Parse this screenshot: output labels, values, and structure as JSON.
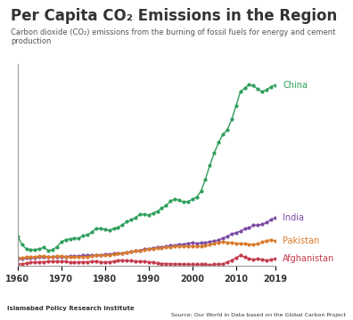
{
  "chart_data": {
    "type": "line",
    "title": "Per Capita CO₂ Emissions in the Region",
    "subtitle": "Carbon dioxide (CO₂) emissions from the burning of fossil fuels for energy and cement production",
    "annotations": [
      "Islamabad Policy Research Institute",
      "Source: Our World in Data based on the Global Carbon Project"
    ],
    "x": [
      1960,
      1961,
      1962,
      1963,
      1964,
      1965,
      1966,
      1967,
      1968,
      1969,
      1970,
      1971,
      1972,
      1973,
      1974,
      1975,
      1976,
      1977,
      1978,
      1979,
      1980,
      1981,
      1982,
      1983,
      1984,
      1985,
      1986,
      1987,
      1988,
      1989,
      1990,
      1991,
      1992,
      1993,
      1994,
      1995,
      1996,
      1997,
      1998,
      1999,
      2000,
      2001,
      2002,
      2003,
      2004,
      2005,
      2006,
      2007,
      2008,
      2009,
      2010,
      2011,
      2012,
      2013,
      2014,
      2015,
      2016,
      2017,
      2018,
      2019
    ],
    "xlim": [
      1960,
      2019
    ],
    "xticks": [
      1960,
      1970,
      1980,
      1990,
      2000,
      2010,
      2019
    ],
    "ylim": [
      0,
      8
    ],
    "tick_labels": "x",
    "grid": false,
    "series": [
      {
        "name": "China",
        "color": "#2e9e5b",
        "marker": "o",
        "values": [
          1.17,
          0.83,
          0.66,
          0.64,
          0.63,
          0.67,
          0.72,
          0.6,
          0.63,
          0.75,
          0.94,
          1.03,
          1.06,
          1.08,
          1.08,
          1.2,
          1.22,
          1.33,
          1.48,
          1.47,
          1.44,
          1.4,
          1.47,
          1.52,
          1.62,
          1.74,
          1.81,
          1.91,
          2.03,
          2.03,
          2.01,
          2.08,
          2.16,
          2.28,
          2.38,
          2.57,
          2.63,
          2.6,
          2.52,
          2.55,
          2.63,
          2.72,
          2.96,
          3.43,
          3.98,
          4.46,
          4.88,
          5.21,
          5.38,
          5.8,
          6.33,
          6.91,
          7.04,
          7.18,
          7.14,
          7.0,
          6.9,
          6.98,
          7.1,
          7.17
        ]
      },
      {
        "name": "India",
        "color": "#7b4aa3",
        "marker": "o",
        "values": [
          0.27,
          0.28,
          0.3,
          0.31,
          0.32,
          0.34,
          0.34,
          0.34,
          0.36,
          0.36,
          0.36,
          0.36,
          0.37,
          0.38,
          0.38,
          0.4,
          0.41,
          0.41,
          0.41,
          0.43,
          0.44,
          0.46,
          0.47,
          0.49,
          0.5,
          0.53,
          0.55,
          0.58,
          0.61,
          0.65,
          0.66,
          0.7,
          0.72,
          0.73,
          0.76,
          0.79,
          0.81,
          0.85,
          0.85,
          0.89,
          0.9,
          0.89,
          0.9,
          0.91,
          0.95,
          0.98,
          1.02,
          1.09,
          1.16,
          1.25,
          1.31,
          1.36,
          1.46,
          1.5,
          1.6,
          1.61,
          1.64,
          1.71,
          1.82,
          1.91
        ]
      },
      {
        "name": "Pakistan",
        "color": "#d97a2b",
        "marker": "o",
        "values": [
          0.3,
          0.32,
          0.33,
          0.33,
          0.35,
          0.38,
          0.37,
          0.36,
          0.36,
          0.37,
          0.37,
          0.36,
          0.34,
          0.35,
          0.35,
          0.36,
          0.36,
          0.37,
          0.4,
          0.4,
          0.4,
          0.42,
          0.45,
          0.47,
          0.49,
          0.52,
          0.55,
          0.58,
          0.59,
          0.62,
          0.65,
          0.66,
          0.7,
          0.7,
          0.73,
          0.74,
          0.76,
          0.77,
          0.77,
          0.78,
          0.78,
          0.77,
          0.78,
          0.79,
          0.83,
          0.89,
          0.9,
          0.95,
          0.92,
          0.91,
          0.89,
          0.88,
          0.86,
          0.85,
          0.85,
          0.86,
          0.93,
          0.99,
          1.03,
          0.98
        ]
      },
      {
        "name": "Afghanistan",
        "color": "#c43a4b",
        "marker": "o",
        "values": [
          0.05,
          0.07,
          0.09,
          0.13,
          0.13,
          0.15,
          0.15,
          0.16,
          0.17,
          0.17,
          0.16,
          0.17,
          0.13,
          0.13,
          0.14,
          0.15,
          0.15,
          0.16,
          0.17,
          0.15,
          0.13,
          0.15,
          0.17,
          0.21,
          0.22,
          0.19,
          0.19,
          0.18,
          0.17,
          0.16,
          0.15,
          0.13,
          0.09,
          0.08,
          0.08,
          0.07,
          0.07,
          0.06,
          0.06,
          0.05,
          0.05,
          0.05,
          0.05,
          0.05,
          0.04,
          0.05,
          0.06,
          0.07,
          0.14,
          0.22,
          0.3,
          0.41,
          0.33,
          0.27,
          0.25,
          0.27,
          0.24,
          0.22,
          0.23,
          0.29
        ]
      }
    ]
  }
}
